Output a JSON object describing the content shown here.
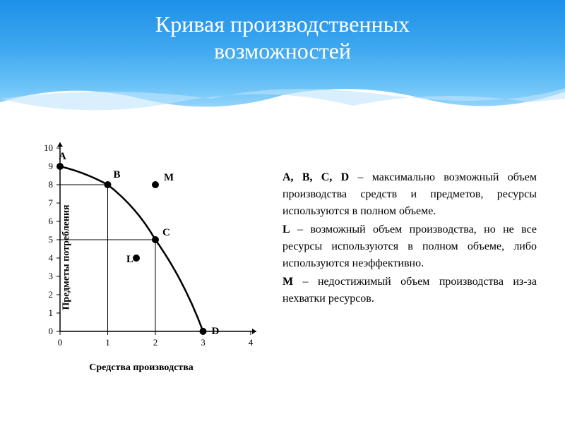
{
  "header": {
    "title_line1": "Кривая производственных",
    "title_line2": "возможностей",
    "gradient_top": "#1e90e8",
    "gradient_bottom": "#ffffff"
  },
  "chart": {
    "type": "line",
    "xlabel": "Средства производства",
    "ylabel": "Предметы потребления",
    "xlim": [
      0,
      4
    ],
    "ylim": [
      0,
      10
    ],
    "xticks": [
      0,
      1,
      2,
      3,
      4
    ],
    "yticks": [
      0,
      1,
      2,
      3,
      4,
      5,
      6,
      7,
      8,
      9,
      10
    ],
    "axis_color": "#000000",
    "grid_color": "#000000",
    "curve_color": "#000000",
    "curve_width": 2.5,
    "marker_size": 5,
    "label_fontsize": 14,
    "tick_fontsize": 13,
    "point_label_fontsize": 15,
    "curve_points": [
      {
        "x": 0,
        "y": 9,
        "label": "A"
      },
      {
        "x": 1,
        "y": 8,
        "label": "B"
      },
      {
        "x": 2,
        "y": 5,
        "label": "C"
      },
      {
        "x": 3,
        "y": 0,
        "label": "D"
      }
    ],
    "extra_points": [
      {
        "x": 1.6,
        "y": 4,
        "label": "L"
      },
      {
        "x": 2,
        "y": 8,
        "label": "M"
      }
    ],
    "ref_lines": [
      {
        "type": "h",
        "y": 8,
        "x_end": 1
      },
      {
        "type": "v",
        "x": 1,
        "y_end": 8
      },
      {
        "type": "h",
        "y": 5,
        "x_end": 2
      },
      {
        "type": "v",
        "x": 2,
        "y_end": 5
      }
    ]
  },
  "description": {
    "p1_bold": "A, B, C, D",
    "p1_text": " – максимально возможный объем производства средств и предметов, ресурсы используются в полном объеме.",
    "p2_bold": "L",
    "p2_text": " – возможный объем производства, но не все ресурсы используются в полном объеме, либо используются неэффективно.",
    "p3_bold": "M",
    "p3_text": " – недостижимый объем производства из-за нехватки ресурсов."
  }
}
